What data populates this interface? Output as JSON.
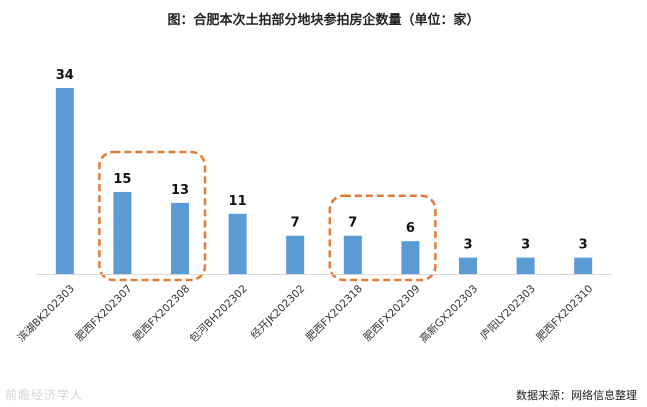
{
  "title": "图：合肥本次土拍部分地块参拍房企数量（单位：家）",
  "source": "数据来源：网络信息整理",
  "watermark": "前瞻经济学人",
  "colors": {
    "bar": "#5b9bd5",
    "highlight": "#e07b39",
    "axis": "#d9d9d9",
    "label": "#111111"
  },
  "chart_data": {
    "type": "bar",
    "categories": [
      "滨湖BK202303",
      "肥西FX202307",
      "肥西FX202308",
      "包河BH202302",
      "经开JK202302",
      "肥西FX202318",
      "肥西FX202309",
      "高新GX202303",
      "庐阳LY202303",
      "肥西FX202310"
    ],
    "values": [
      34,
      15,
      13,
      11,
      7,
      7,
      6,
      3,
      3,
      3
    ],
    "title": "图：合肥本次土拍部分地块参拍房企数量（单位：家）",
    "ylim": [
      0,
      34
    ],
    "grid": false,
    "legend": "none",
    "highlight_groups": [
      [
        1,
        2
      ],
      [
        5,
        6
      ]
    ]
  }
}
